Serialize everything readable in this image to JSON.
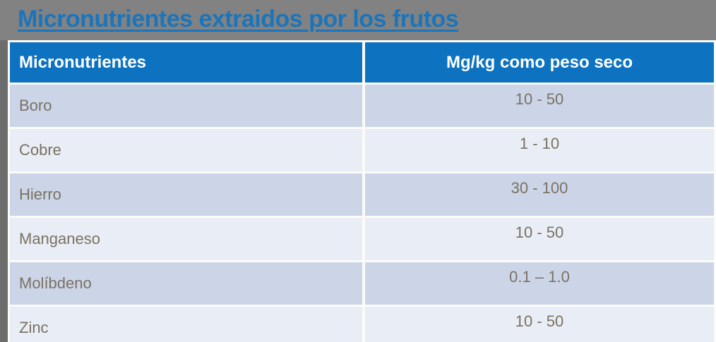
{
  "title": "Micronutrientes extraidos por los frutos",
  "table": {
    "columns": [
      "Micronutrientes",
      "Mg/kg como peso seco"
    ],
    "rows": [
      {
        "name": "Boro",
        "value": "10 - 50"
      },
      {
        "name": "Cobre",
        "value": "1 - 10"
      },
      {
        "name": "Hierro",
        "value": "30 - 100"
      },
      {
        "name": "Manganeso",
        "value": "10 - 50"
      },
      {
        "name": "Molíbdeno",
        "value": "0.1 – 1.0"
      },
      {
        "name": "Zinc",
        "value": "10 - 50"
      }
    ]
  },
  "chart_data": {
    "type": "table",
    "title": "Micronutrientes extraidos por los frutos",
    "columns": [
      "Micronutrientes",
      "Mg/kg como peso seco"
    ],
    "rows": [
      [
        "Boro",
        "10 - 50"
      ],
      [
        "Cobre",
        "1 - 10"
      ],
      [
        "Hierro",
        "30 - 100"
      ],
      [
        "Manganeso",
        "10 - 50"
      ],
      [
        "Molíbdeno",
        "0.1 – 1.0"
      ],
      [
        "Zinc",
        "10 - 50"
      ]
    ]
  },
  "colors": {
    "background": "#828282",
    "title_text": "#1b75bc",
    "header_bg": "#0d72c0",
    "header_text": "#ffffff",
    "row_dark": "#cbd5e7",
    "row_light": "#e9edf5",
    "row_text": "#7a7163",
    "table_border": "#fbfcf8",
    "left_shadow": "#6d6d6d"
  }
}
